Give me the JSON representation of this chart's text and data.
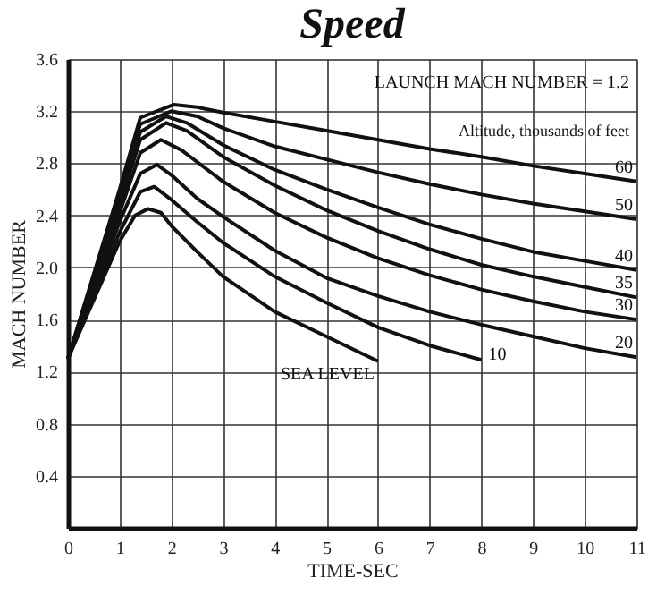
{
  "chart_data": {
    "type": "line",
    "title": "Speed",
    "xlabel": "TIME-SEC",
    "ylabel": "MACH NUMBER",
    "annotations": [
      "LAUNCH MACH NUMBER = 1.2",
      "Altitude, thousands of feet"
    ],
    "xlim": [
      0,
      11
    ],
    "xticks": [
      0,
      1,
      2,
      3,
      4,
      5,
      6,
      7,
      8,
      9,
      10,
      11
    ],
    "ylim": [
      0,
      3.6
    ],
    "yticks": [
      0.4,
      0.8,
      1.2,
      1.6,
      {
        "value": 2,
        "label": "2.0"
      },
      2.4,
      2.8,
      3.2,
      3.6
    ],
    "grid": true,
    "marker": "none",
    "line_style": "solid",
    "series": [
      {
        "name": "60",
        "color": "#111111",
        "x": [
          0,
          0.5,
          1,
          1.4,
          2.05,
          2.5,
          3,
          4,
          5,
          6,
          7,
          8,
          9,
          10,
          11
        ],
        "values": [
          1.3,
          1.95,
          2.6,
          3.15,
          3.25,
          3.23,
          3.19,
          3.12,
          3.05,
          2.98,
          2.91,
          2.85,
          2.78,
          2.72,
          2.66
        ]
      },
      {
        "name": "50",
        "color": "#111111",
        "x": [
          0,
          0.5,
          1,
          1.4,
          2,
          2.5,
          3,
          4,
          5,
          6,
          7,
          8,
          9,
          10,
          11
        ],
        "values": [
          1.3,
          1.93,
          2.56,
          3.1,
          3.2,
          3.16,
          3.07,
          2.93,
          2.83,
          2.73,
          2.64,
          2.56,
          2.49,
          2.43,
          2.37
        ]
      },
      {
        "name": "40",
        "color": "#111111",
        "x": [
          0,
          0.5,
          1,
          1.4,
          1.9,
          2.3,
          3,
          4,
          5,
          6,
          7,
          8,
          9,
          10,
          11
        ],
        "values": [
          1.3,
          1.91,
          2.52,
          3.04,
          3.16,
          3.11,
          2.94,
          2.75,
          2.6,
          2.46,
          2.33,
          2.22,
          2.12,
          2.05,
          1.98
        ]
      },
      {
        "name": "35",
        "color": "#111111",
        "x": [
          0,
          0.5,
          1,
          1.4,
          1.9,
          2.3,
          3,
          4,
          5,
          6,
          7,
          8,
          9,
          10,
          11
        ],
        "values": [
          1.3,
          1.88,
          2.48,
          2.98,
          3.11,
          3.05,
          2.85,
          2.63,
          2.44,
          2.28,
          2.14,
          2.02,
          1.93,
          1.85,
          1.77
        ]
      },
      {
        "name": "30",
        "color": "#111111",
        "x": [
          0,
          0.5,
          1,
          1.4,
          1.8,
          2.2,
          2.5,
          3,
          4,
          5,
          6,
          7,
          8,
          9,
          10,
          11
        ],
        "values": [
          1.3,
          1.85,
          2.42,
          2.88,
          2.98,
          2.9,
          2.81,
          2.66,
          2.42,
          2.23,
          2.07,
          1.94,
          1.83,
          1.74,
          1.66,
          1.6
        ]
      },
      {
        "name": "20",
        "color": "#111111",
        "x": [
          0,
          0.5,
          1,
          1.4,
          1.72,
          2,
          2.5,
          3,
          4,
          5,
          6,
          7,
          8,
          9,
          10,
          11
        ],
        "values": [
          1.3,
          1.82,
          2.35,
          2.72,
          2.79,
          2.71,
          2.53,
          2.39,
          2.13,
          1.92,
          1.78,
          1.66,
          1.56,
          1.47,
          1.38,
          1.31
        ]
      },
      {
        "name": "10",
        "color": "#111111",
        "x": [
          0,
          0.5,
          1,
          1.4,
          1.67,
          2,
          2.5,
          3,
          4,
          5,
          6,
          7,
          8
        ],
        "values": [
          1.3,
          1.78,
          2.27,
          2.58,
          2.62,
          2.52,
          2.35,
          2.19,
          1.93,
          1.73,
          1.54,
          1.4,
          1.29
        ]
      },
      {
        "name": "SEA LEVEL",
        "color": "#111111",
        "x": [
          0,
          0.5,
          1,
          1.3,
          1.55,
          1.8,
          2,
          2.5,
          3,
          4,
          5,
          6
        ],
        "values": [
          1.3,
          1.75,
          2.2,
          2.4,
          2.45,
          2.42,
          2.32,
          2.12,
          1.93,
          1.66,
          1.47,
          1.28
        ]
      }
    ]
  }
}
